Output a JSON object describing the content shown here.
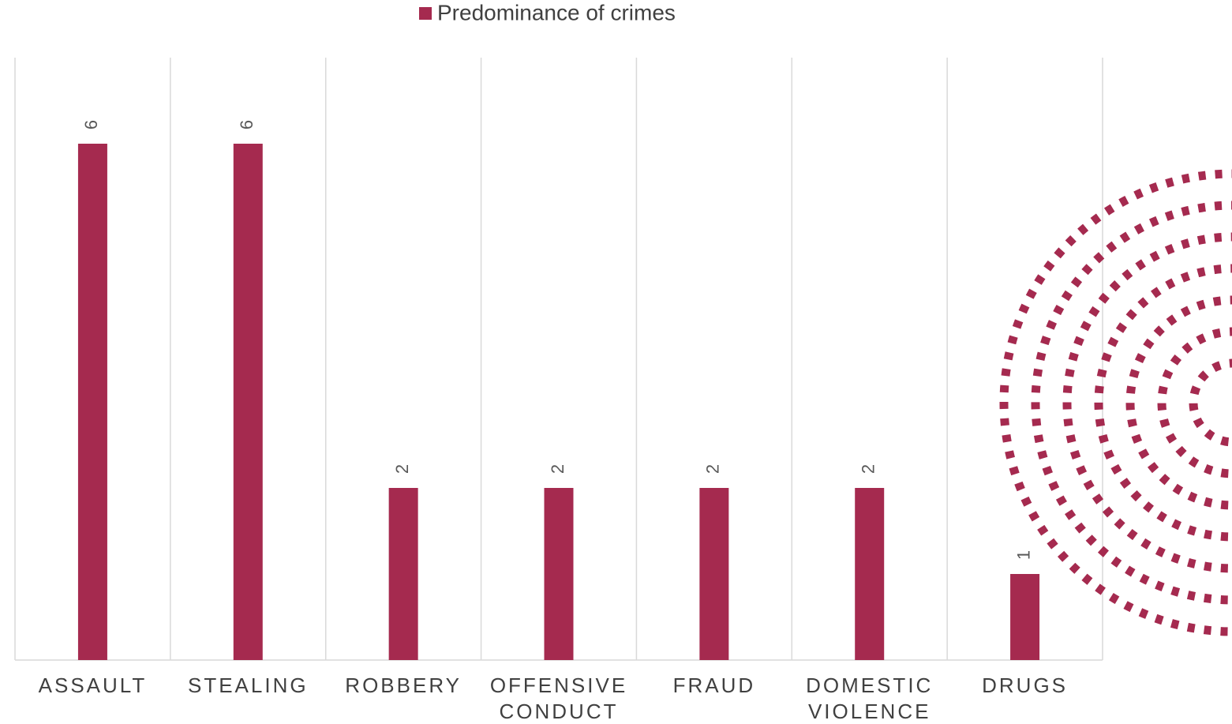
{
  "chart_data": {
    "type": "bar",
    "series": [
      {
        "name": "Predominance of crimes",
        "color": "#a52a4f",
        "values": [
          6,
          6,
          2,
          2,
          2,
          2,
          1
        ]
      }
    ],
    "categories": [
      "ASSAULT",
      "STEALING",
      "ROBBERY",
      "OFFENSIVE CONDUCT",
      "FRAUD",
      "DOMESTIC VIOLENCE",
      "DRUGS"
    ],
    "ylim": [
      0,
      7
    ],
    "grid": true,
    "legend": "top"
  }
}
